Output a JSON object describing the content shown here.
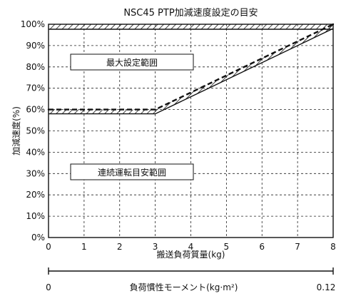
{
  "chart_data": {
    "type": "line",
    "title": "NSC45 PTP加減速度設定の目安",
    "xlabel": "搬送負荷質量(kg)",
    "ylabel": "加減速度(%)",
    "xlim": [
      0,
      8
    ],
    "ylim": [
      0,
      100
    ],
    "x_ticks": [
      "0",
      "1",
      "2",
      "3",
      "4",
      "5",
      "6",
      "7",
      "8"
    ],
    "y_ticks": [
      "0%",
      "10%",
      "20%",
      "30%",
      "40%",
      "50%",
      "60%",
      "70%",
      "80%",
      "90%",
      "100%"
    ],
    "grid": true,
    "series": [
      {
        "x": [
          0,
          3,
          8
        ],
        "y": [
          60,
          60,
          100
        ],
        "style": "dashed-hatched"
      }
    ],
    "upper_limit": {
      "y": 100,
      "style": "hatched"
    },
    "regions": [
      {
        "label": "最大設定範囲"
      },
      {
        "label": "連続運転目安範囲"
      }
    ],
    "secondary_axis": {
      "label": "負荷慣性モーメント(kg·m²)",
      "min_label": "0",
      "max_label": "0.12",
      "range": [
        0,
        0.12
      ]
    }
  }
}
